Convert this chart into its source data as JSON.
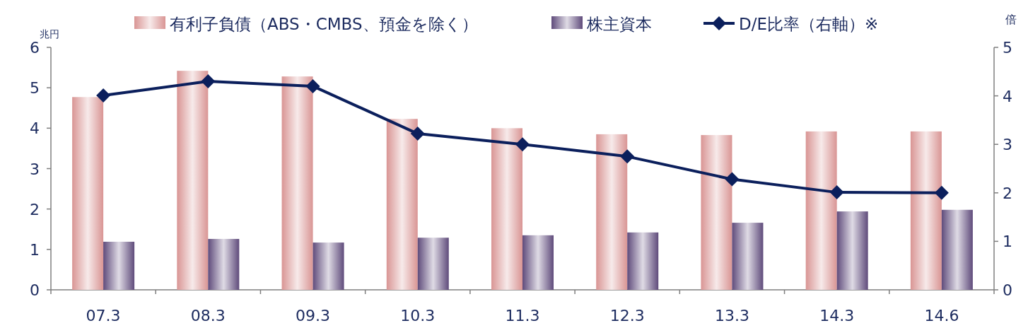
{
  "chart_data": {
    "type": "bar",
    "ylabel": "兆円",
    "y2label": "倍",
    "categories": [
      "07.3",
      "08.3",
      "09.3",
      "10.3",
      "11.3",
      "12.3",
      "13.3",
      "14.3",
      "14.6"
    ],
    "series": [
      {
        "name": "有利子負債（ABS・CMBS、預金を除く）",
        "color": "#d99594",
        "values": [
          4.77,
          5.42,
          5.28,
          4.23,
          4.0,
          3.85,
          3.83,
          3.92,
          3.92
        ]
      },
      {
        "name": "株主資本",
        "color": "#5f4b7b",
        "values": [
          1.19,
          1.26,
          1.17,
          1.29,
          1.35,
          1.42,
          1.66,
          1.94,
          1.98
        ]
      },
      {
        "name": "D/E比率（右軸）※",
        "type": "line",
        "axis": "y2",
        "color": "#0b1f5c",
        "marker": "diamond",
        "values": [
          4.01,
          4.3,
          4.2,
          3.22,
          3.0,
          2.75,
          2.28,
          2.01,
          2.0
        ]
      }
    ],
    "ylim": [
      0,
      6
    ],
    "yticks": [
      0,
      1,
      2,
      3,
      4,
      5,
      6
    ],
    "y2lim": [
      0,
      5
    ],
    "y2ticks": [
      0,
      1,
      2,
      3,
      4,
      5
    ],
    "grid": false,
    "legend": "top"
  }
}
